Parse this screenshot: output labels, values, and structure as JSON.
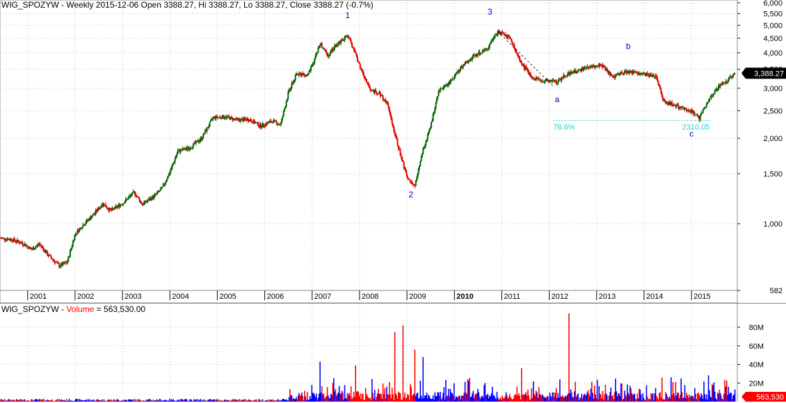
{
  "window": {
    "price_header": "WIG_SPOZYW - Weekly 2015-12-06 Open 3388.27, Hi 3388.27, Lo 3388.27, Close 3388.27 (-0.7%)",
    "volume_header_ticker": "WIG_SPOZYW",
    "volume_header_sep": " - ",
    "volume_header_label": "Volume",
    "volume_header_value": " = 563,530.00"
  },
  "colors": {
    "up": "#006400",
    "down": "#e00000",
    "vol_up": "#0000ff",
    "vol_down": "#ff0000",
    "wave_label": "#0000cc",
    "fib": "#33cccc",
    "grid": "#bfbfbf",
    "price_tag_bg": "#000000",
    "price_tag_fg": "#ffffff",
    "volume_tag_bg": "#ff0000",
    "volume_tag_fg": "#ffffff"
  },
  "chart_data": [
    {
      "type": "candlestick",
      "ticker": "WIG_SPOZYW",
      "interval": "Weekly",
      "y_scale": "log",
      "ylim": [
        582,
        6000
      ],
      "y_ticks": [
        582,
        1000,
        1500,
        2000,
        2500,
        3000,
        3500,
        4000,
        4500,
        5000,
        5500,
        6000
      ],
      "y_tick_labels": [
        "582",
        "1,000",
        "1,500",
        "2,000",
        "2,500",
        "3,000",
        "3,500",
        "4,000",
        "4,500",
        "5,000",
        "5,500",
        "6,000"
      ],
      "x_range": [
        "2000-06",
        "2015-12"
      ],
      "x_ticks": [
        "2001",
        "2002",
        "2003",
        "2004",
        "2005",
        "2006",
        "2007",
        "2008",
        "2009",
        "2010",
        "2011",
        "2012",
        "2013",
        "2014",
        "2015"
      ],
      "x_tick_bold": "2010",
      "grid": true,
      "last_close": 3388.27,
      "last_close_label": "3,388.27",
      "path": [
        [
          "2000-06",
          890
        ],
        [
          "2000-09",
          880
        ],
        [
          "2000-12",
          850
        ],
        [
          "2001-02",
          810
        ],
        [
          "2001-04",
          850
        ],
        [
          "2001-06",
          780
        ],
        [
          "2001-09",
          710
        ],
        [
          "2001-11",
          730
        ],
        [
          "2002-01",
          920
        ],
        [
          "2002-03",
          990
        ],
        [
          "2002-06",
          1090
        ],
        [
          "2002-08",
          1180
        ],
        [
          "2002-10",
          1110
        ],
        [
          "2003-01",
          1180
        ],
        [
          "2003-04",
          1290
        ],
        [
          "2003-06",
          1170
        ],
        [
          "2003-09",
          1250
        ],
        [
          "2003-11",
          1330
        ],
        [
          "2004-01",
          1520
        ],
        [
          "2004-03",
          1800
        ],
        [
          "2004-06",
          1850
        ],
        [
          "2004-09",
          2000
        ],
        [
          "2004-12",
          2370
        ],
        [
          "2005-03",
          2380
        ],
        [
          "2005-06",
          2320
        ],
        [
          "2005-09",
          2330
        ],
        [
          "2005-12",
          2210
        ],
        [
          "2006-03",
          2300
        ],
        [
          "2006-05",
          2230
        ],
        [
          "2006-07",
          2900
        ],
        [
          "2006-09",
          3350
        ],
        [
          "2006-12",
          3350
        ],
        [
          "2007-01",
          3600
        ],
        [
          "2007-03",
          4300
        ],
        [
          "2007-05",
          3900
        ],
        [
          "2007-07",
          4250
        ],
        [
          "2007-10",
          4600
        ],
        [
          "2007-12",
          3950
        ],
        [
          "2008-02",
          3300
        ],
        [
          "2008-04",
          2950
        ],
        [
          "2008-06",
          2900
        ],
        [
          "2008-08",
          2650
        ],
        [
          "2008-10",
          2050
        ],
        [
          "2009-01",
          1450
        ],
        [
          "2009-03",
          1350
        ],
        [
          "2009-05",
          1800
        ],
        [
          "2009-07",
          2200
        ],
        [
          "2009-09",
          2950
        ],
        [
          "2009-12",
          3150
        ],
        [
          "2010-03",
          3600
        ],
        [
          "2010-06",
          3900
        ],
        [
          "2010-09",
          4100
        ],
        [
          "2010-12",
          4750
        ],
        [
          "2011-03",
          4500
        ],
        [
          "2011-06",
          3650
        ],
        [
          "2011-09",
          3250
        ],
        [
          "2012-03",
          3150
        ],
        [
          "2012-05",
          3350
        ],
        [
          "2012-08",
          3450
        ],
        [
          "2012-11",
          3550
        ],
        [
          "2013-02",
          3650
        ],
        [
          "2013-05",
          3300
        ],
        [
          "2013-09",
          3450
        ],
        [
          "2014-01",
          3350
        ],
        [
          "2014-04",
          3300
        ],
        [
          "2014-06",
          2700
        ],
        [
          "2014-09",
          2600
        ],
        [
          "2015-01",
          2500
        ],
        [
          "2015-03",
          2350
        ],
        [
          "2015-05",
          2700
        ],
        [
          "2015-08",
          3050
        ],
        [
          "2015-10",
          3200
        ],
        [
          "2015-12",
          3388.27
        ]
      ],
      "annotations": [
        {
          "text": "1",
          "x": "2007-10",
          "y": 5300
        },
        {
          "text": "2",
          "x": "2009-02",
          "y": 1240
        },
        {
          "text": "3",
          "x": "2010-10",
          "y": 5450
        },
        {
          "text": "a",
          "x": "2012-03",
          "y": 2680
        },
        {
          "text": "b",
          "x": "2013-09",
          "y": 4130
        },
        {
          "text": "c",
          "x": "2015-01",
          "y": 2030
        }
      ],
      "fib_line": {
        "y": 2310.05,
        "x_start": "2012-02",
        "x_end": "2015-06",
        "left_label": "78.6%",
        "right_label": "2310.05"
      },
      "dashed_trend": [
        [
          "2010-12",
          4750
        ],
        [
          "2012-02",
          3050
        ]
      ]
    },
    {
      "type": "bar",
      "series_label": "Volume",
      "last_value": 563530,
      "last_value_label": "563,530",
      "y_ticks": [
        20000000,
        40000000,
        60000000,
        80000000
      ],
      "y_tick_labels": [
        "20M",
        "40M",
        "60M",
        "80M"
      ],
      "ylim": [
        0,
        95000000
      ],
      "spikes": [
        {
          "x": "2007-03",
          "value": 43000000,
          "up": true
        },
        {
          "x": "2007-12",
          "value": 39000000,
          "up": true
        },
        {
          "x": "2008-10",
          "value": 75000000,
          "up": false
        },
        {
          "x": "2008-12",
          "value": 82000000,
          "up": true
        },
        {
          "x": "2009-03",
          "value": 56000000,
          "up": true
        },
        {
          "x": "2009-05",
          "value": 48000000,
          "up": true
        },
        {
          "x": "2011-06",
          "value": 36000000,
          "up": false
        },
        {
          "x": "2012-06",
          "value": 95000000,
          "up": true
        },
        {
          "x": "2014-09",
          "value": 21000000,
          "up": true
        }
      ]
    }
  ]
}
